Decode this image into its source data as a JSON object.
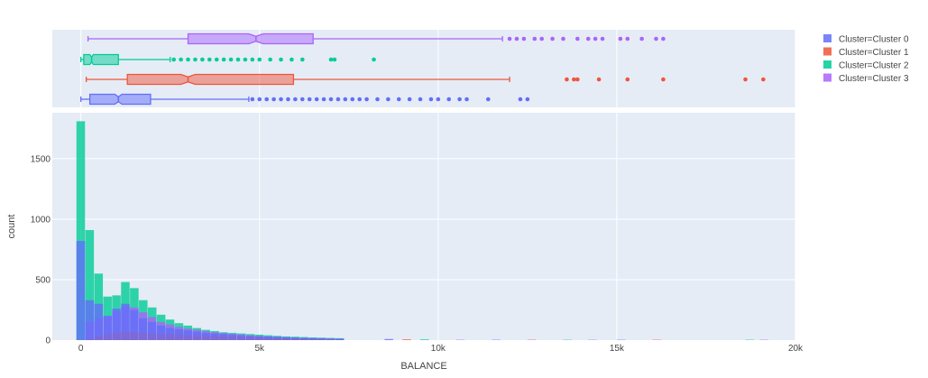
{
  "chart_data": {
    "type": "histogram",
    "marginal": "box",
    "barmode": "overlay",
    "xlabel": "BALANCE",
    "ylabel": "count",
    "xlim": [
      -800,
      20000
    ],
    "ylim": [
      0,
      1880
    ],
    "x_tick_values": [
      0,
      5000,
      10000,
      15000,
      20000
    ],
    "x_tick_labels": [
      "0",
      "5k",
      "10k",
      "15k",
      "20k"
    ],
    "y_tick_values": [
      0,
      500,
      1000,
      1500
    ],
    "y_tick_labels": [
      "0",
      "500",
      "1000",
      "1500"
    ],
    "grid": true,
    "legend": "right",
    "bin_width": 250,
    "bin_start": -125,
    "series": [
      {
        "name": "Cluster=Cluster 0",
        "color": "#636efa",
        "counts": [
          820,
          330,
          300,
          200,
          260,
          300,
          250,
          180,
          150,
          120,
          100,
          90,
          80,
          70,
          60,
          55,
          50,
          45,
          40,
          35,
          32,
          30,
          28,
          25,
          22,
          20,
          18,
          16,
          14,
          12
        ],
        "box": {
          "q1": 250,
          "median": 1050,
          "q3": 1950,
          "lower_fence": 0,
          "upper_fence": 4700,
          "notch_low": 950,
          "notch_high": 1150
        },
        "outliers": [
          4800,
          5000,
          5200,
          5400,
          5600,
          5800,
          6000,
          6200,
          6400,
          6600,
          6800,
          7000,
          7200,
          7400,
          7600,
          7800,
          8000,
          8300,
          8600,
          8900,
          9200,
          9500,
          9800,
          10000,
          10300,
          10600,
          10800,
          11400,
          12300,
          12500
        ]
      },
      {
        "name": "Cluster=Cluster 1",
        "color": "#ef553b",
        "counts": [
          0,
          8,
          30,
          50,
          60,
          70,
          65,
          60,
          55,
          50,
          48,
          45,
          42,
          40,
          38,
          35,
          32,
          30,
          28,
          25,
          22,
          20,
          18,
          16,
          14,
          12,
          10,
          9,
          8,
          7
        ],
        "box": {
          "q1": 1300,
          "median": 3000,
          "q3": 5950,
          "lower_fence": 150,
          "upper_fence": 12000,
          "notch_low": 2800,
          "notch_high": 3200
        },
        "outliers": [
          13600,
          13800,
          13900,
          14500,
          15300,
          16300,
          18600,
          19100
        ]
      },
      {
        "name": "Cluster=Cluster 2",
        "color": "#00cc96",
        "counts": [
          1810,
          910,
          550,
          360,
          370,
          480,
          430,
          330,
          270,
          210,
          170,
          140,
          120,
          100,
          85,
          75,
          65,
          60,
          55,
          50,
          45,
          40,
          35,
          30,
          28,
          25,
          22,
          20,
          18,
          16
        ],
        "box": {
          "q1": 80,
          "median": 300,
          "q3": 1050,
          "lower_fence": 0,
          "upper_fence": 2500,
          "notch_low": 250,
          "notch_high": 350
        },
        "outliers": [
          2600,
          2800,
          3000,
          3200,
          3400,
          3600,
          3800,
          4000,
          4200,
          4400,
          4600,
          4800,
          5000,
          5300,
          5600,
          5900,
          6200,
          7000,
          7100,
          8200
        ]
      },
      {
        "name": "Cluster=Cluster 3",
        "color": "#ab63fa",
        "counts": [
          0,
          150,
          180,
          200,
          240,
          280,
          270,
          230,
          190,
          150,
          130,
          110,
          95,
          85,
          75,
          65,
          58,
          52,
          46,
          40,
          35,
          30,
          26,
          22,
          19,
          16,
          14,
          12,
          10,
          8
        ],
        "box": {
          "q1": 3000,
          "median": 4900,
          "q3": 6500,
          "lower_fence": 200,
          "upper_fence": 11800,
          "notch_low": 4700,
          "notch_high": 5100
        },
        "outliers": [
          12000,
          12200,
          12400,
          12700,
          12900,
          13200,
          13500,
          13900,
          14200,
          14400,
          14600,
          15100,
          15300,
          15700,
          16100,
          16300
        ]
      }
    ]
  }
}
